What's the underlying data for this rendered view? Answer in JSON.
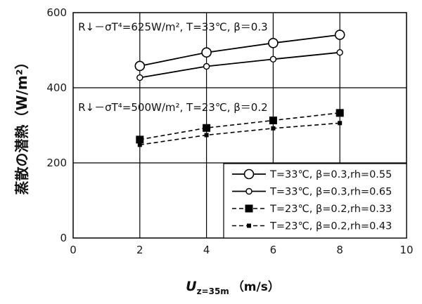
{
  "chart_data": {
    "type": "line",
    "xlabel": {
      "main": "U",
      "sub": "z=35m",
      "unit": "（m/s）"
    },
    "ylabel": "蒸散の潜熱（W/m²）",
    "xlim": [
      0,
      10
    ],
    "ylim": [
      0,
      600
    ],
    "xticks": [
      "0",
      "2",
      "4",
      "6",
      "8",
      "10"
    ],
    "yticks": [
      "0",
      "200",
      "400",
      "600"
    ],
    "grid": true,
    "legend_position": "bottom-right",
    "x": [
      2,
      4,
      6,
      8
    ],
    "annotations": [
      {
        "text": "R↓－σT⁴=625W/m², T=33℃, β＝0.3",
        "x": 0.15,
        "y": 552
      },
      {
        "text": "R↓－σT⁴=500W/m², T=23℃, β＝0.2",
        "x": 0.15,
        "y": 338
      }
    ],
    "series": [
      {
        "name": "T=33℃, β=0.3,rh=0.55",
        "values": [
          458,
          494,
          519,
          541
        ],
        "color": "#000000",
        "line": "solid",
        "marker": "circle-large"
      },
      {
        "name": "T=33℃, β=0.3,rh=0.65",
        "values": [
          427,
          457,
          476,
          494
        ],
        "color": "#000000",
        "line": "solid",
        "marker": "circle-small"
      },
      {
        "name": "T=23℃, β=0.2,rh=0.33",
        "values": [
          262,
          293,
          313,
          333
        ],
        "color": "#000000",
        "line": "dashed",
        "marker": "square-large"
      },
      {
        "name": "T=23℃, β=0.2,rh=0.43",
        "values": [
          248,
          274,
          292,
          306
        ],
        "color": "#000000",
        "line": "dashed",
        "marker": "square-small"
      }
    ]
  }
}
